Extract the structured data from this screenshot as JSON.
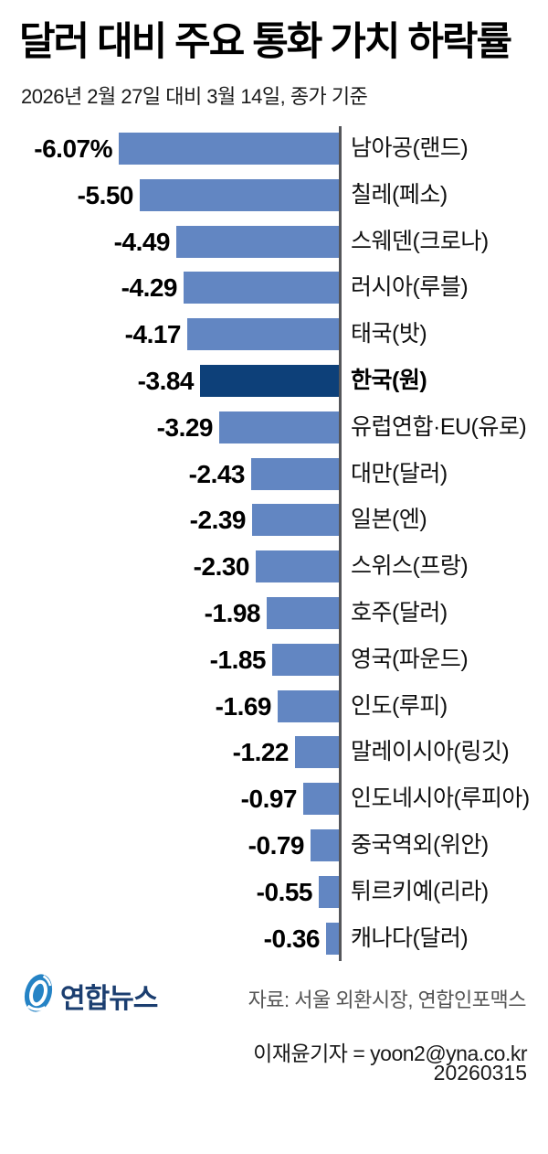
{
  "header": {
    "title": "달러 대비 주요 통화 가치 하락률",
    "subtitle": "2026년 2월 27일 대비 3월 14일, 종가 기준"
  },
  "chart_data": {
    "type": "bar",
    "orientation": "horizontal",
    "title": "달러 대비 주요 통화 가치 하락률",
    "subtitle": "2026년 2월 27일 대비 3월 14일, 종가 기준",
    "unit": "%",
    "categories": [
      "남아공(랜드)",
      "칠레(페소)",
      "스웨덴(크로나)",
      "러시아(루블)",
      "태국(밧)",
      "한국(원)",
      "유럽연합·EU(유로)",
      "대만(달러)",
      "일본(엔)",
      "스위스(프랑)",
      "호주(달러)",
      "영국(파운드)",
      "인도(루피)",
      "말레이시아(링깃)",
      "인도네시아(루피아)",
      "중국역외(위안)",
      "튀르키예(리라)",
      "캐나다(달러)"
    ],
    "values": [
      -6.07,
      -5.5,
      -4.49,
      -4.29,
      -4.17,
      -3.84,
      -3.29,
      -2.43,
      -2.39,
      -2.3,
      -1.98,
      -1.85,
      -1.69,
      -1.22,
      -0.97,
      -0.79,
      -0.55,
      -0.36
    ],
    "display_values": [
      "-6.07%",
      "-5.50",
      "-4.49",
      "-4.29",
      "-4.17",
      "-3.84",
      "-3.29",
      "-2.43",
      "-2.39",
      "-2.30",
      "-1.98",
      "-1.85",
      "-1.69",
      "-1.22",
      "-0.97",
      "-0.79",
      "-0.55",
      "-0.36"
    ],
    "highlight_index": 5,
    "highlight_category": "한국(원)",
    "xlim": [
      -6.07,
      0
    ],
    "grid": false,
    "legend": false,
    "colors": {
      "bar": "#6286c2",
      "highlight": "#0d4079",
      "axis": "#55565a"
    }
  },
  "footer": {
    "logo_text": "연합뉴스",
    "logo_color": "#2583c5",
    "source": "자료: 서울 외환시장, 연합인포맥스",
    "byline": "이재윤기자 = yoon2@yna.co.kr",
    "date": "20260315"
  }
}
